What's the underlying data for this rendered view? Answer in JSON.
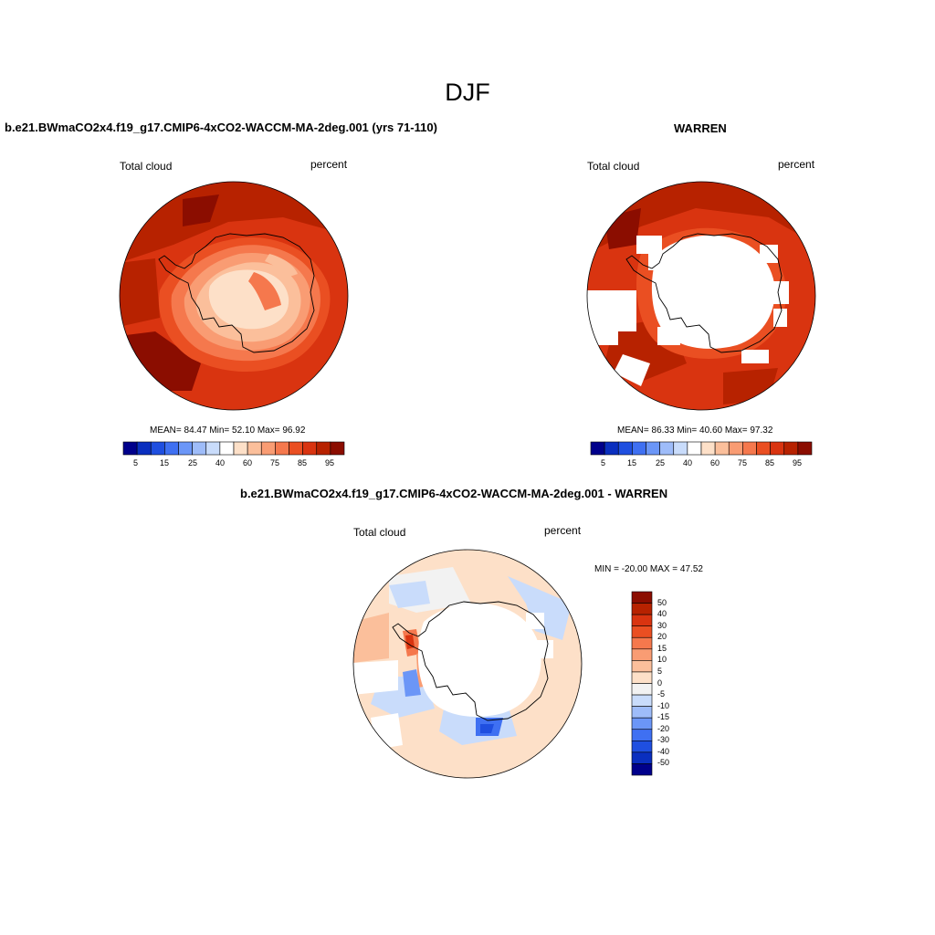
{
  "figure": {
    "title": "DJF"
  },
  "chart_data": [
    {
      "type": "heatmap",
      "title": "b.e21.BWmaCO2x4.f19_g17.CMIP6-4xCO2-WACCM-MA-2deg.001 (yrs 71-110)",
      "left_label": "Total cloud",
      "units": "percent",
      "stats": {
        "mean": "84.47",
        "min": "52.10",
        "max": "96.92",
        "text": "MEAN=  84.47  Min=  52.10  Max=  96.92"
      },
      "levels": [
        "5",
        "15",
        "25",
        "40",
        "60",
        "75",
        "85",
        "95"
      ],
      "colors": [
        "#00008b",
        "#0a2fbf",
        "#1f4fe0",
        "#3f70f2",
        "#6b96f7",
        "#9ebcf9",
        "#c9dcfb",
        "#ffffff",
        "#fde0c8",
        "#fbbf9b",
        "#f99c73",
        "#f5784d",
        "#ea4f22",
        "#d93410",
        "#b72200",
        "#8b0d00"
      ]
    },
    {
      "type": "heatmap",
      "title": "WARREN",
      "left_label": "Total cloud",
      "units": "percent",
      "stats": {
        "mean": "86.33",
        "min": "40.60",
        "max": "97.32",
        "text": "MEAN=  86.33  Min=  40.60  Max=  97.32"
      },
      "levels": [
        "5",
        "15",
        "25",
        "40",
        "60",
        "75",
        "85",
        "95"
      ],
      "colors": [
        "#00008b",
        "#0a2fbf",
        "#1f4fe0",
        "#3f70f2",
        "#6b96f7",
        "#9ebcf9",
        "#c9dcfb",
        "#ffffff",
        "#fde0c8",
        "#fbbf9b",
        "#f99c73",
        "#f5784d",
        "#ea4f22",
        "#d93410",
        "#b72200",
        "#8b0d00"
      ]
    },
    {
      "type": "heatmap",
      "title": "b.e21.BWmaCO2x4.f19_g17.CMIP6-4xCO2-WACCM-MA-2deg.001 - WARREN",
      "left_label": "Total cloud",
      "units": "percent",
      "stats": {
        "min": "-20.00",
        "max": "47.52",
        "text": "MIN = -20.00 MAX =  47.52"
      },
      "levels": [
        "50",
        "40",
        "30",
        "20",
        "15",
        "10",
        "5",
        "0",
        "-5",
        "-10",
        "-15",
        "-20",
        "-30",
        "-40",
        "-50"
      ],
      "colors": [
        "#8b0d00",
        "#b72200",
        "#d93410",
        "#ea4f22",
        "#f5784d",
        "#f99c73",
        "#fbbf9b",
        "#fde0c8",
        "#f2f2f2",
        "#c9dcfb",
        "#9ebcf9",
        "#6b96f7",
        "#3f70f2",
        "#1f4fe0",
        "#0a2fbf",
        "#00008b"
      ]
    }
  ]
}
